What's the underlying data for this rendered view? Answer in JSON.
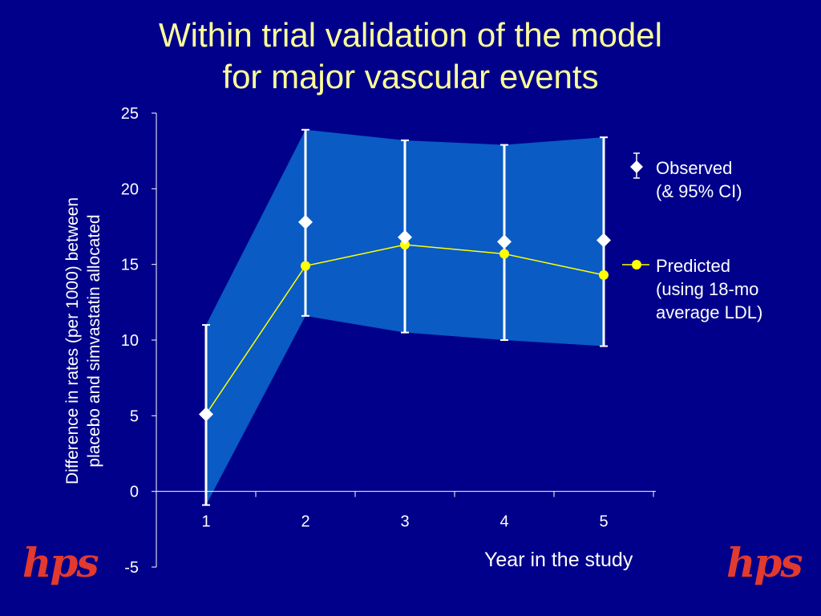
{
  "title": {
    "line1": "Within trial validation of the model",
    "line2": "for major vascular events"
  },
  "chart_data": {
    "type": "line",
    "title": "Within trial validation of the model for major vascular events",
    "xlabel": "Year in the study",
    "ylabel_line1": "Difference in rates (per 1000) between",
    "ylabel_line2": "placebo and simvastatin allocated",
    "x": [
      1,
      2,
      3,
      4,
      5
    ],
    "categories": [
      "1",
      "2",
      "3",
      "4",
      "5"
    ],
    "ylim": [
      -5,
      25
    ],
    "yticks": [
      "25",
      "20",
      "15",
      "10",
      "5",
      "0",
      "-5"
    ],
    "ytick_values": [
      25,
      20,
      15,
      10,
      5,
      0,
      -5
    ],
    "series": [
      {
        "name": "Observed (& 95% CI)",
        "marker": "diamond",
        "values": [
          5.1,
          17.8,
          16.8,
          16.5,
          16.6
        ],
        "ci_upper": [
          11.0,
          23.9,
          23.2,
          22.9,
          23.4
        ],
        "ci_lower": [
          -0.9,
          11.6,
          10.5,
          10.0,
          9.6
        ]
      },
      {
        "name": "Predicted (using 18-mo average LDL)",
        "marker": "circle",
        "values": [
          5.1,
          14.9,
          16.3,
          15.7,
          14.3
        ]
      }
    ],
    "colors": {
      "background": "#00008B",
      "ci_band": "#0A5BC4",
      "observed": "#FFFFFF",
      "predicted": "#FFFF00",
      "axis": "#FFFFFF"
    }
  },
  "legend": {
    "observed_line1": "Observed",
    "observed_line2": "(& 95% CI)",
    "predicted_line1": "Predicted",
    "predicted_line2": "(using 18-mo",
    "predicted_line3": "average LDL)"
  },
  "logos": {
    "left": "hps",
    "right": "hps"
  }
}
